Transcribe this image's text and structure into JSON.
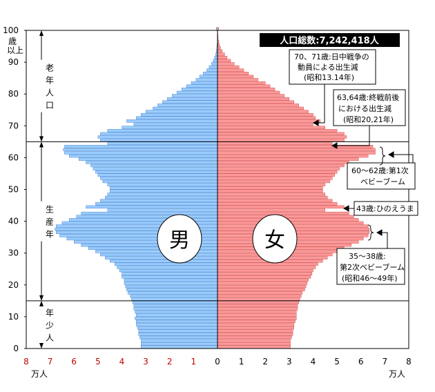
{
  "chart_data": {
    "type": "bar",
    "orientation": "horizontal",
    "title": "人口総数:7,242,418人",
    "ages": [
      0,
      1,
      2,
      3,
      4,
      5,
      6,
      7,
      8,
      9,
      10,
      11,
      12,
      13,
      14,
      15,
      16,
      17,
      18,
      19,
      20,
      21,
      22,
      23,
      24,
      25,
      26,
      27,
      28,
      29,
      30,
      31,
      32,
      33,
      34,
      35,
      36,
      37,
      38,
      39,
      40,
      41,
      42,
      43,
      44,
      45,
      46,
      47,
      48,
      49,
      50,
      51,
      52,
      53,
      54,
      55,
      56,
      57,
      58,
      59,
      60,
      61,
      62,
      63,
      64,
      65,
      66,
      67,
      68,
      69,
      70,
      71,
      72,
      73,
      74,
      75,
      76,
      77,
      78,
      79,
      80,
      81,
      82,
      83,
      84,
      85,
      86,
      87,
      88,
      89,
      90,
      91,
      92,
      93,
      94,
      95,
      96,
      97,
      98,
      99,
      100
    ],
    "series": [
      {
        "name": "男",
        "color": "#99ccff",
        "values": [
          3.2,
          3.2,
          3.2,
          3.25,
          3.3,
          3.3,
          3.35,
          3.4,
          3.4,
          3.45,
          3.4,
          3.45,
          3.5,
          3.5,
          3.55,
          3.6,
          3.65,
          3.75,
          3.8,
          3.85,
          3.9,
          3.9,
          4.0,
          4.0,
          4.1,
          4.2,
          4.3,
          4.5,
          4.7,
          4.9,
          5.1,
          5.4,
          5.7,
          6.0,
          6.3,
          6.6,
          6.75,
          6.8,
          6.75,
          6.5,
          6.2,
          5.9,
          5.7,
          4.6,
          5.5,
          5.1,
          4.9,
          4.7,
          4.6,
          4.5,
          4.5,
          4.6,
          4.8,
          4.9,
          5.0,
          5.1,
          5.2,
          5.3,
          5.5,
          5.8,
          6.2,
          6.4,
          6.45,
          6.4,
          4.6,
          4.9,
          5.0,
          4.9,
          4.6,
          4.0,
          3.5,
          3.8,
          3.4,
          3.2,
          3.0,
          2.7,
          2.5,
          2.3,
          2.1,
          1.9,
          1.7,
          1.5,
          1.3,
          1.1,
          0.9,
          0.75,
          0.6,
          0.45,
          0.35,
          0.25,
          0.18,
          0.12,
          0.08,
          0.05,
          0.03,
          0.02,
          0.01,
          0.01,
          0.0,
          0.0,
          0.05
        ]
      },
      {
        "name": "女",
        "color": "#ff9999",
        "values": [
          3.05,
          3.05,
          3.05,
          3.1,
          3.15,
          3.15,
          3.2,
          3.2,
          3.25,
          3.3,
          3.3,
          3.3,
          3.35,
          3.35,
          3.4,
          3.45,
          3.5,
          3.55,
          3.65,
          3.7,
          3.75,
          3.8,
          3.9,
          3.95,
          4.0,
          4.1,
          4.2,
          4.4,
          4.6,
          4.8,
          5.0,
          5.3,
          5.6,
          5.9,
          6.1,
          6.3,
          6.35,
          6.35,
          6.3,
          6.1,
          5.9,
          5.7,
          5.5,
          4.5,
          5.3,
          5.0,
          4.8,
          4.6,
          4.5,
          4.4,
          4.4,
          4.5,
          4.7,
          4.8,
          4.9,
          5.0,
          5.1,
          5.3,
          5.5,
          5.9,
          6.3,
          6.6,
          6.6,
          6.5,
          4.8,
          5.3,
          5.4,
          5.3,
          5.0,
          4.5,
          4.0,
          4.3,
          4.1,
          4.0,
          3.8,
          3.6,
          3.4,
          3.2,
          3.0,
          2.8,
          2.6,
          2.4,
          2.2,
          2.0,
          1.7,
          1.5,
          1.3,
          1.1,
          0.9,
          0.7,
          0.55,
          0.4,
          0.3,
          0.2,
          0.13,
          0.08,
          0.05,
          0.03,
          0.02,
          0.01,
          0.05
        ]
      }
    ],
    "xticks_left": [
      "8",
      "7",
      "6",
      "5",
      "4",
      "3",
      "2",
      "1"
    ],
    "xticks_right": [
      "0",
      "1",
      "2",
      "3",
      "4",
      "5",
      "6",
      "7",
      "8"
    ],
    "xunit": "万人",
    "yticks": [
      "100",
      "90",
      "80",
      "70",
      "60",
      "50",
      "40",
      "30",
      "20",
      "10",
      "0"
    ],
    "y_top_label": [
      "歳",
      "以上"
    ],
    "age_groups": [
      {
        "label": "老年人口",
        "chars": [
          "老",
          "年",
          "人",
          "口"
        ]
      },
      {
        "label": "生産年",
        "chars": [
          "生",
          "産",
          "年"
        ]
      },
      {
        "label": "年少人",
        "chars": [
          "年",
          "少",
          "人"
        ]
      }
    ],
    "sex_labels": {
      "male": "男",
      "female": "女"
    },
    "annotations": [
      {
        "lines": [
          "70、71歳:日中戦争の",
          "動員による出生減",
          "(昭和13.14年)"
        ]
      },
      {
        "lines": [
          "63,64歳:終戦前後",
          "における出生減",
          "(昭和20,21年)"
        ]
      },
      {
        "lines": [
          "60～62歳:第1次",
          "ベビーブーム"
        ]
      },
      {
        "lines": [
          "43歳:ひのえうま"
        ]
      },
      {
        "lines": [
          "35～38歳:",
          "第2次ベビーブーム",
          "(昭和46～49年)"
        ]
      }
    ],
    "xlim": [
      -8,
      8
    ],
    "ylim": [
      0,
      100
    ]
  }
}
